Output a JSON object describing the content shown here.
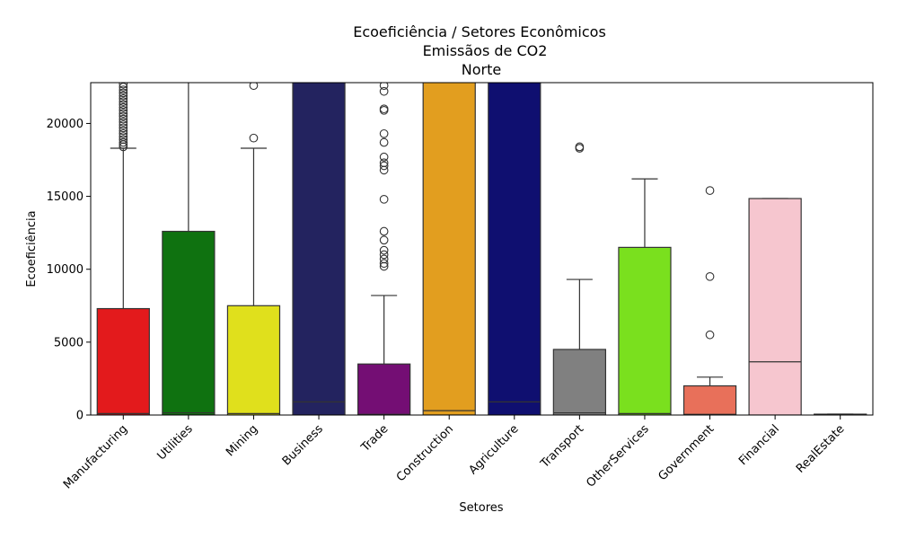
{
  "chart_data": {
    "type": "box",
    "title_lines": [
      "Ecoeficiência / Setores Econômicos",
      "Emissãos de CO2",
      "Norte"
    ],
    "xlabel": "Setores",
    "ylabel": "Ecoeficiência",
    "ylim": [
      0,
      22800
    ],
    "yticks": [
      0,
      5000,
      10000,
      15000,
      20000
    ],
    "ytick_labels": [
      "0",
      "5000",
      "10000",
      "15000",
      "20000"
    ],
    "grid": false,
    "legend": "none",
    "categories": [
      {
        "name": "Manufacturing",
        "color": "#e31a1c",
        "q1": 0,
        "median": 100,
        "q3": 7300,
        "whisker_low": 0,
        "whisker_high": 18300,
        "outliers": [
          18400,
          18550,
          18700,
          18900,
          19100,
          19300,
          19500,
          19700,
          19900,
          20100,
          20300,
          20500,
          20700,
          20900,
          21100,
          21300,
          21500,
          21700,
          21900,
          22100,
          22300,
          22500,
          22700
        ]
      },
      {
        "name": "Utilities",
        "color": "#0f7210",
        "q1": 0,
        "median": 150,
        "q3": 12600,
        "whisker_low": 0,
        "whisker_high": 23500,
        "outliers": []
      },
      {
        "name": "Mining",
        "color": "#e0e01c",
        "q1": 0,
        "median": 100,
        "q3": 7500,
        "whisker_low": 0,
        "whisker_high": 18300,
        "outliers": [
          19000,
          22600
        ]
      },
      {
        "name": "Business",
        "color": "#23235f",
        "q1": 0,
        "median": 900,
        "q3": 23500,
        "whisker_low": 0,
        "whisker_high": 23500,
        "outliers": []
      },
      {
        "name": "Trade",
        "color": "#740e74",
        "q1": 0,
        "median": 50,
        "q3": 3500,
        "whisker_low": 0,
        "whisker_high": 8200,
        "outliers": [
          10200,
          10400,
          10700,
          11000,
          11300,
          12000,
          12600,
          14800,
          16800,
          17100,
          17300,
          17700,
          18700,
          19300,
          20900,
          21000,
          22200,
          22600
        ]
      },
      {
        "name": "Construction",
        "color": "#e29e1f",
        "q1": 0,
        "median": 300,
        "q3": 23500,
        "whisker_low": 0,
        "whisker_high": 23500,
        "outliers": []
      },
      {
        "name": "Agriculture",
        "color": "#0f0f70",
        "q1": 0,
        "median": 900,
        "q3": 23500,
        "whisker_low": 0,
        "whisker_high": 23500,
        "outliers": []
      },
      {
        "name": "Transport",
        "color": "#808080",
        "q1": 0,
        "median": 150,
        "q3": 4500,
        "whisker_low": 0,
        "whisker_high": 9300,
        "outliers": [
          18300,
          18400
        ]
      },
      {
        "name": "OtherServices",
        "color": "#7ae01e",
        "q1": 0,
        "median": 100,
        "q3": 11500,
        "whisker_low": 0,
        "whisker_high": 16200,
        "outliers": []
      },
      {
        "name": "Government",
        "color": "#e8705a",
        "q1": 0,
        "median": 50,
        "q3": 2000,
        "whisker_low": 0,
        "whisker_high": 2600,
        "outliers": [
          5500,
          9500,
          15400
        ]
      },
      {
        "name": "Financial",
        "color": "#f6c6cf",
        "q1": 0,
        "median": 3650,
        "q3": 14850,
        "whisker_low": 0,
        "whisker_high": 14850,
        "outliers": []
      },
      {
        "name": "RealEstate",
        "color": "#b5c4e6",
        "q1": 0,
        "median": 20,
        "q3": 60,
        "whisker_low": 0,
        "whisker_high": 60,
        "outliers": []
      }
    ]
  }
}
